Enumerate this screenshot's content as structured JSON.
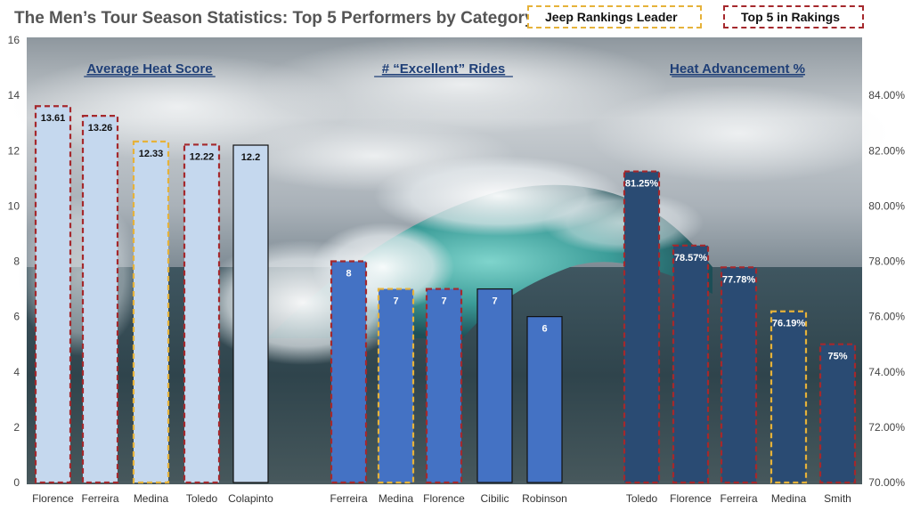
{
  "title": "The Men’s Tour Season Statistics: Top 5 Performers by Category",
  "legend": [
    {
      "label": "Jeep Rankings Leader",
      "style": "dashed",
      "color": "#E6B23A"
    },
    {
      "label": "Top 5 in Rakings",
      "style": "dashed",
      "color": "#A5282C"
    }
  ],
  "colors": {
    "light_bar": "#C5D8EE",
    "mid_bar": "#4472C4",
    "dark_bar": "#2A4B73",
    "leader_outline": "#E6B23A",
    "top5_outline": "#A5282C",
    "plain_outline": "#111111",
    "panel_title": "#1F3F77"
  },
  "chart_data": [
    {
      "type": "bar",
      "title": "Average Heat Score",
      "axis": "left",
      "ylim": [
        0,
        16
      ],
      "yticks": [
        "0",
        "2",
        "4",
        "6",
        "8",
        "10",
        "12",
        "14",
        "16"
      ],
      "categories": [
        "Florence",
        "Ferreira",
        "Medina",
        "Toledo",
        "Colapinto"
      ],
      "values": [
        13.61,
        13.26,
        12.33,
        12.22,
        12.2
      ],
      "labels": [
        "13.61",
        "13.26",
        "12.33",
        "12.22",
        "12.2"
      ],
      "outline": [
        "top5",
        "top5",
        "leader",
        "top5",
        "plain"
      ],
      "fill": "light_bar"
    },
    {
      "type": "bar",
      "title": "# “Excellent” Rides",
      "axis": "left",
      "ylim": [
        0,
        16
      ],
      "categories": [
        "Ferreira",
        "Medina",
        "Florence",
        "Cibilic",
        "Robinson"
      ],
      "values": [
        8,
        7,
        7,
        7,
        6
      ],
      "labels": [
        "8",
        "7",
        "7",
        "7",
        "6"
      ],
      "outline": [
        "top5",
        "leader",
        "top5",
        "plain",
        "plain"
      ],
      "fill": "mid_bar"
    },
    {
      "type": "bar",
      "title": "Heat Advancement %",
      "axis": "right",
      "ylim": [
        70,
        86
      ],
      "yticks": [
        "70.00%",
        "72.00%",
        "74.00%",
        "76.00%",
        "78.00%",
        "80.00%",
        "82.00%",
        "84.00%"
      ],
      "categories": [
        "Toledo",
        "Florence",
        "Ferreira",
        "Medina",
        "Smith"
      ],
      "values": [
        81.25,
        78.57,
        77.78,
        76.19,
        75
      ],
      "labels": [
        "81.25%",
        "78.57%",
        "77.78%",
        "76.19%",
        "75%"
      ],
      "outline": [
        "top5",
        "top5",
        "top5",
        "leader",
        "top5"
      ],
      "fill": "dark_bar"
    }
  ]
}
